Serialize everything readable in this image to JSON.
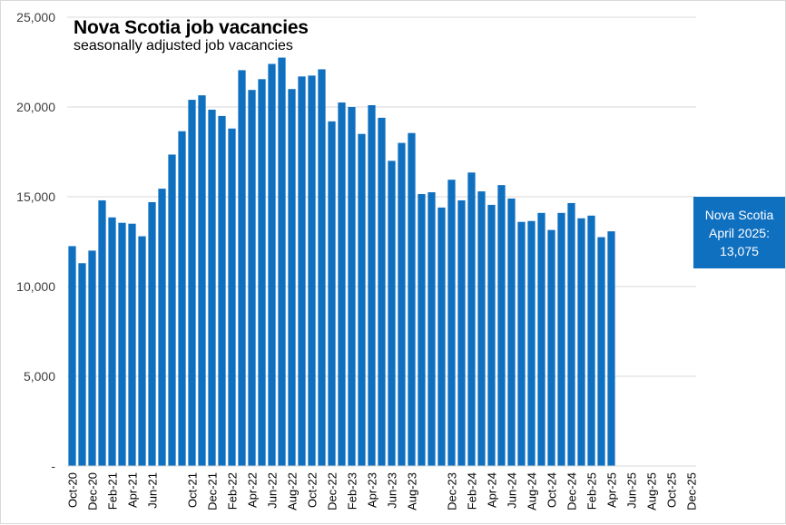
{
  "chart_data": {
    "type": "bar",
    "title": "Nova Scotia job vacancies",
    "subtitle": "seasonally adjusted job vacancies",
    "xlabel": "",
    "ylabel": "",
    "ylim": [
      0,
      25000
    ],
    "yticks": [
      {
        "value": 0,
        "label": "-"
      },
      {
        "value": 5000,
        "label": "5,000"
      },
      {
        "value": 10000,
        "label": "10,000"
      },
      {
        "value": 15000,
        "label": "15,000"
      },
      {
        "value": 20000,
        "label": "20,000"
      },
      {
        "value": 25000,
        "label": "25,000"
      }
    ],
    "grid": true,
    "bar_color": "#1070c0",
    "categories": [
      "Oct-20",
      "Nov-20",
      "Dec-20",
      "Jan-21",
      "Feb-21",
      "Mar-21",
      "Apr-21",
      "May-21",
      "Jun-21",
      "Jul-21",
      "Aug-21",
      "Sep-21",
      "Oct-21",
      "Nov-21",
      "Dec-21",
      "Jan-22",
      "Feb-22",
      "Mar-22",
      "Apr-22",
      "May-22",
      "Jun-22",
      "Jul-22",
      "Aug-22",
      "Sep-22",
      "Oct-22",
      "Nov-22",
      "Dec-22",
      "Jan-23",
      "Feb-23",
      "Mar-23",
      "Apr-23",
      "May-23",
      "Jun-23",
      "Jul-23",
      "Aug-23",
      "Sep-23",
      "Oct-23",
      "Nov-23",
      "Dec-23",
      "Jan-24",
      "Feb-24",
      "Mar-24",
      "Apr-24",
      "May-24",
      "Jun-24",
      "Jul-24",
      "Aug-24",
      "Sep-24",
      "Oct-24",
      "Nov-24",
      "Dec-24",
      "Jan-25",
      "Feb-25",
      "Mar-25",
      "Apr-25",
      "May-25",
      "Jun-25",
      "Jul-25",
      "Aug-25",
      "Sep-25",
      "Oct-25",
      "Nov-25",
      "Dec-25"
    ],
    "values": [
      12250,
      11300,
      12000,
      14800,
      13850,
      13550,
      13500,
      12800,
      14700,
      15450,
      17350,
      18650,
      20400,
      20650,
      19850,
      19500,
      18800,
      22050,
      20950,
      21550,
      22400,
      22750,
      21000,
      21700,
      21750,
      22100,
      19200,
      20250,
      20000,
      18500,
      20100,
      19400,
      17000,
      18000,
      18550,
      15150,
      15250,
      14400,
      15950,
      14800,
      16350,
      15300,
      14550,
      15650,
      14900,
      13600,
      13650,
      14100,
      13150,
      14100,
      14650,
      13800,
      13950,
      12750,
      13075,
      null,
      null,
      null,
      null,
      null,
      null,
      null,
      null
    ],
    "tick_labels": [
      "Oct-20",
      "Dec-20",
      "Feb-21",
      "Apr-21",
      "Jun-21",
      "Oct-21",
      "Dec-21",
      "Feb-22",
      "Apr-22",
      "Jun-22",
      "Aug-22",
      "Oct-22",
      "Dec-22",
      "Feb-23",
      "Apr-23",
      "Jun-23",
      "Aug-23",
      "Dec-23",
      "Feb-24",
      "Apr-24",
      "Jun-24",
      "Aug-24",
      "Oct-24",
      "Dec-24",
      "Feb-25",
      "Apr-25",
      "Jun-25",
      "Aug-25",
      "Oct-25",
      "Dec-25"
    ],
    "annotation": {
      "line1": "Nova Scotia",
      "line2": "April 2025:",
      "line3": "13,075"
    }
  }
}
